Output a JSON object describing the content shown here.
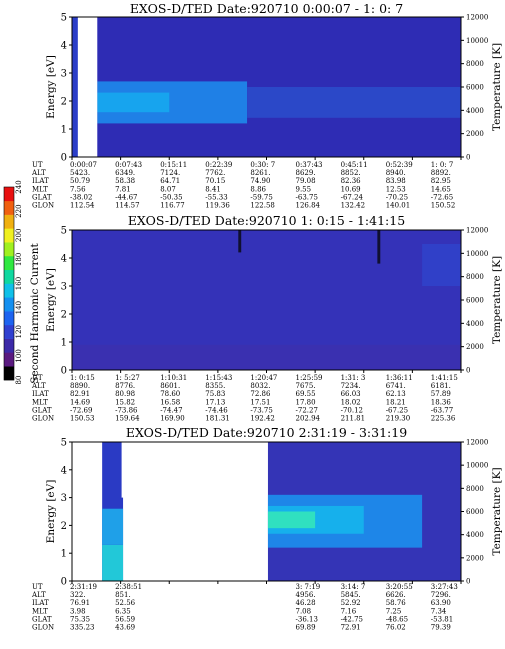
{
  "figure_title": "EXOS-D/TED",
  "ephemeris_row_labels": [
    "UT",
    "ALT",
    "ILAT",
    "MLT",
    "GLAT",
    "GLON"
  ],
  "colorbar": {
    "label": "Second Harmonic Current",
    "tick_labels": [
      "80",
      "100",
      "120",
      "140",
      "160",
      "180",
      "200",
      "220",
      "240"
    ],
    "colors": [
      "#000000",
      "#5a1a80",
      "#3c2aa8",
      "#3040d0",
      "#1e64f0",
      "#1490f0",
      "#10c0e8",
      "#10d8a0",
      "#30e840",
      "#a0f020",
      "#f0f020",
      "#f0b010",
      "#f06010",
      "#e81010"
    ]
  },
  "chart_data": [
    {
      "type": "heatmap",
      "title": "EXOS-D/TED   Date:920710  0:00:07 - 1: 0: 7",
      "ylabel": "Energy [eV]",
      "y2label": "Temperature [K]",
      "ylim": [
        0,
        5
      ],
      "y2lim": [
        0,
        12000
      ],
      "yticks": [
        "0",
        "1",
        "2",
        "3",
        "4",
        "5"
      ],
      "y2ticks": [
        "0",
        "2000",
        "4000",
        "6000",
        "8000",
        "10000",
        "12000"
      ],
      "background": "#2e2cb4",
      "gaps": [
        [
          0.12,
          0.52
        ]
      ],
      "features": [
        {
          "x0": 0.0,
          "x1": 0.45,
          "y0": 0.0,
          "y1": 5.0,
          "color": "#2b3ec8"
        },
        {
          "x0": 0.52,
          "x1": 3.6,
          "y0": 1.2,
          "y1": 2.7,
          "color": "#1f80e6"
        },
        {
          "x0": 0.52,
          "x1": 2.0,
          "y0": 1.6,
          "y1": 2.3,
          "color": "#17a4ee"
        },
        {
          "x0": 3.6,
          "x1": 8.0,
          "y0": 1.4,
          "y1": 2.5,
          "color": "#2b48c8"
        }
      ],
      "ephemeris": {
        "UT": [
          "0:00:07",
          "0:07:43",
          "0:15:11",
          "0:22:39",
          "0:30: 7",
          "0:37:43",
          "0:45:11",
          "0:52:39",
          "1: 0: 7"
        ],
        "ALT": [
          "5423.",
          "6349.",
          "7124.",
          "7762.",
          "8261.",
          "8629.",
          "8852.",
          "8940.",
          "8892."
        ],
        "ILAT": [
          "50.79",
          "58.38",
          "64.71",
          "70.15",
          "74.90",
          "79.08",
          "82.36",
          "83.98",
          "82.95"
        ],
        "MLT": [
          "7.56",
          "7.81",
          "8.07",
          "8.41",
          "8.86",
          "9.55",
          "10.69",
          "12.53",
          "14.65"
        ],
        "GLAT": [
          "-38.02",
          "-44.67",
          "-50.35",
          "-55.33",
          "-59.75",
          "-63.75",
          "-67.24",
          "-70.25",
          "-72.65"
        ],
        "GLON": [
          "112.54",
          "114.57",
          "116.77",
          "119.36",
          "122.58",
          "126.84",
          "132.42",
          "140.01",
          "150.52"
        ]
      }
    },
    {
      "type": "heatmap",
      "title": "EXOS-D/TED   Date:920710  1: 0:15 - 1:41:15",
      "ylabel": "Energy [eV]",
      "y2label": "Temperature [K]",
      "ylim": [
        0,
        5
      ],
      "y2lim": [
        0,
        12000
      ],
      "yticks": [
        "0",
        "1",
        "2",
        "3",
        "4",
        "5"
      ],
      "y2ticks": [
        "0",
        "2000",
        "4000",
        "6000",
        "8000",
        "10000",
        "12000"
      ],
      "background": "#3432b8",
      "gaps": [],
      "features": [
        {
          "x0": 0.0,
          "x1": 8.0,
          "y0": 0.0,
          "y1": 0.9,
          "color": "#3a30b0"
        },
        {
          "x0": 3.42,
          "x1": 3.48,
          "y0": 4.2,
          "y1": 5.0,
          "color": "#101030"
        },
        {
          "x0": 6.28,
          "x1": 6.34,
          "y0": 3.8,
          "y1": 5.0,
          "color": "#101030"
        },
        {
          "x0": 7.2,
          "x1": 8.0,
          "y0": 3.0,
          "y1": 4.5,
          "color": "#3040c8"
        }
      ],
      "ephemeris": {
        "UT": [
          "1: 0:15",
          "1: 5:27",
          "1:10:31",
          "1:15:43",
          "1:20:47",
          "1:25:59",
          "1:31: 3",
          "1:36:11",
          "1:41:15"
        ],
        "ALT": [
          "8890.",
          "8776.",
          "8601.",
          "8355.",
          "8032.",
          "7675.",
          "7234.",
          "6741.",
          "6181."
        ],
        "ILAT": [
          "82.91",
          "80.98",
          "78.60",
          "75.83",
          "72.86",
          "69.55",
          "66.03",
          "62.13",
          "57.89"
        ],
        "MLT": [
          "14.69",
          "15.82",
          "16.58",
          "17.13",
          "17.51",
          "17.80",
          "18.02",
          "18.21",
          "18.36"
        ],
        "GLAT": [
          "-72.69",
          "-73.86",
          "-74.47",
          "-74.46",
          "-73.75",
          "-72.27",
          "-70.12",
          "-67.25",
          "-63.77"
        ],
        "GLON": [
          "150.53",
          "159.64",
          "169.90",
          "181.31",
          "192.42",
          "202.94",
          "211.81",
          "219.30",
          "225.36"
        ]
      }
    },
    {
      "type": "heatmap",
      "title": "EXOS-D/TED   Date:920710  2:31:19 - 3:31:19",
      "ylabel": "Energy [eV]",
      "y2label": "Temperature [K]",
      "ylim": [
        0,
        5
      ],
      "y2lim": [
        0,
        12000
      ],
      "yticks": [
        "0",
        "1",
        "2",
        "3",
        "4",
        "5"
      ],
      "y2ticks": [
        "0",
        "2000",
        "4000",
        "6000",
        "8000",
        "10000",
        "12000"
      ],
      "background": "#ffffff",
      "gaps": [],
      "features": [
        {
          "x0": 0.62,
          "x1": 1.05,
          "y0": 0.0,
          "y1": 5.0,
          "color": "#2a3ac4"
        },
        {
          "x0": 0.62,
          "x1": 1.05,
          "y0": 0.0,
          "y1": 1.3,
          "color": "#22c8d8"
        },
        {
          "x0": 0.62,
          "x1": 1.05,
          "y0": 1.3,
          "y1": 2.6,
          "color": "#1fa0e8"
        },
        {
          "x0": 1.02,
          "x1": 1.07,
          "y0": 3.0,
          "y1": 5.0,
          "color": "#ffffff"
        },
        {
          "x0": 4.03,
          "x1": 8.0,
          "y0": 0.0,
          "y1": 5.0,
          "color": "#3434b6"
        },
        {
          "x0": 4.03,
          "x1": 7.2,
          "y0": 1.2,
          "y1": 3.1,
          "color": "#1e86e8"
        },
        {
          "x0": 4.03,
          "x1": 6.0,
          "y0": 1.7,
          "y1": 2.7,
          "color": "#16b0ec"
        },
        {
          "x0": 4.03,
          "x1": 5.0,
          "y0": 1.9,
          "y1": 2.5,
          "color": "#30e0c0"
        }
      ],
      "ephemeris": {
        "UT": [
          "2:31:19",
          "2:38:51",
          "",
          "",
          "",
          "3: 7:19",
          "3:14: 7",
          "3:20:55",
          "3:27:43"
        ],
        "ALT": [
          "322.",
          "851.",
          "",
          "",
          "",
          "4956.",
          "5845.",
          "6626.",
          "7296."
        ],
        "ILAT": [
          "76.91",
          "52.56",
          "",
          "",
          "",
          "46.28",
          "52.92",
          "58.76",
          "63.90"
        ],
        "MLT": [
          "3.98",
          "6.35",
          "",
          "",
          "",
          "7.08",
          "7.16",
          "7.25",
          "7.34"
        ],
        "GLAT": [
          "75.35",
          "56.59",
          "",
          "",
          "",
          "-36.13",
          "-42.75",
          "-48.65",
          "-53.81"
        ],
        "GLON": [
          "335.23",
          "43.69",
          "",
          "",
          "",
          "69.89",
          "72.91",
          "76.02",
          "79.39"
        ]
      }
    }
  ]
}
